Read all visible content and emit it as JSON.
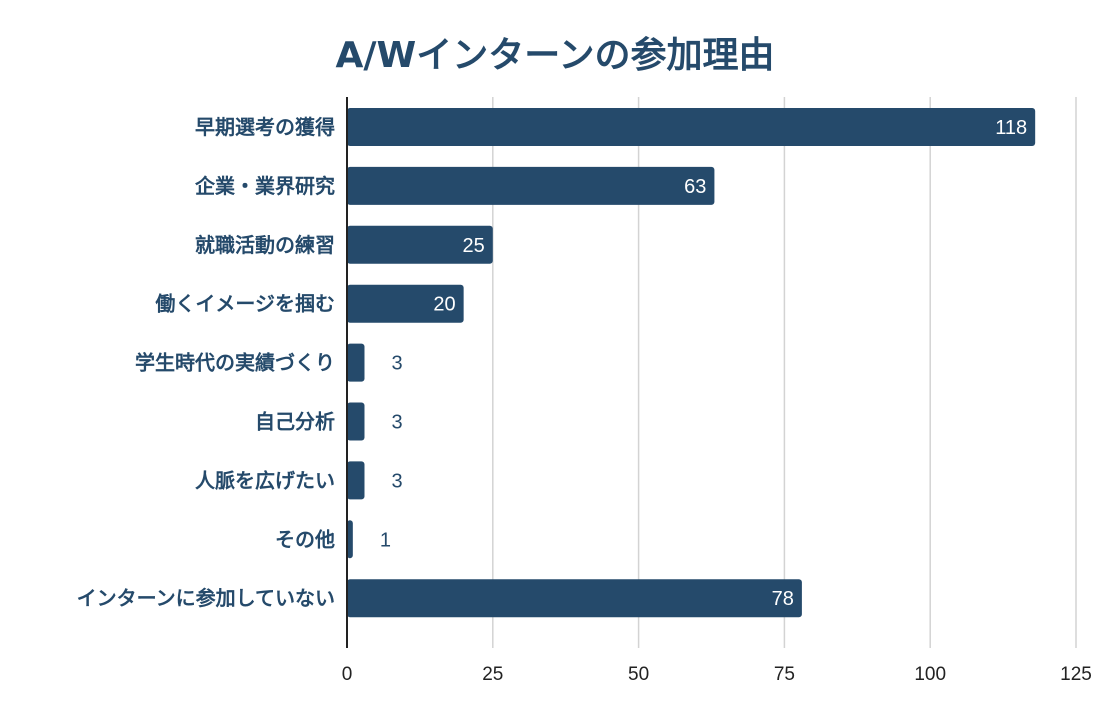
{
  "chart_data": {
    "type": "bar",
    "orientation": "horizontal",
    "title": "A/Wインターンの参加理由",
    "categories": [
      "早期選考の獲得",
      "企業・業界研究",
      "就職活動の練習",
      "働くイメージを掴む",
      "学生時代の実績づくり",
      "自己分析",
      "人脈を広げたい",
      "その他",
      "インターンに参加していない"
    ],
    "values": [
      118,
      63,
      25,
      20,
      3,
      3,
      3,
      1,
      78
    ],
    "value_labels": [
      "118",
      "63",
      "25",
      "20",
      "3",
      "3",
      "3",
      "1",
      "78"
    ],
    "xlim": [
      0,
      125
    ],
    "x_ticks": [
      0,
      25,
      50,
      75,
      100,
      125
    ],
    "x_tick_labels": [
      "0",
      "25",
      "50",
      "75",
      "100",
      "125"
    ],
    "grid": true,
    "legend": "none"
  },
  "colors": {
    "bar": "#254a6b",
    "title": "#254a6b",
    "category_text": "#254a6b",
    "value_inside": "#ffffff",
    "value_outside": "#254a6b",
    "grid": "#d3d3d3",
    "axis": "#222222",
    "tick_text": "#222222"
  }
}
